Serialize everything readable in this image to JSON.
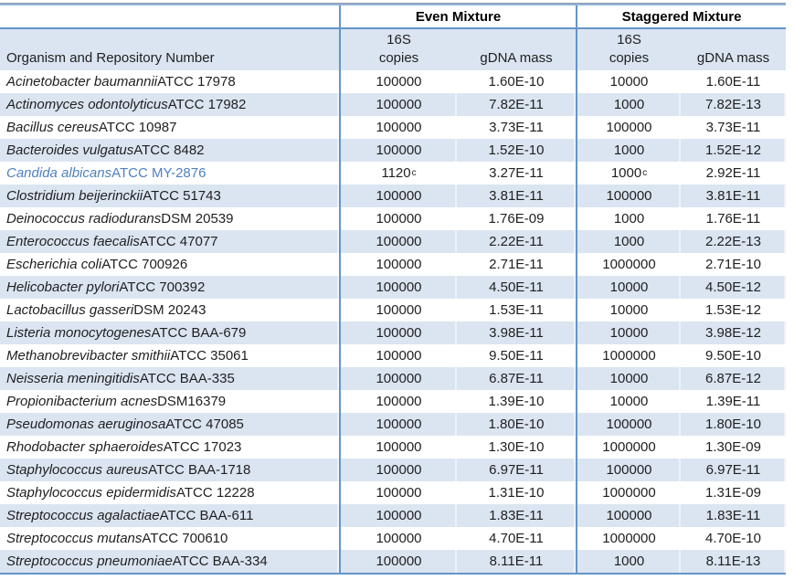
{
  "table": {
    "group_headers": [
      {
        "label": "Even Mixture"
      },
      {
        "label": "Staggered Mixture"
      }
    ],
    "columns": {
      "organism": "Organism and Repository Number",
      "copies_line1": "16S",
      "copies_line2": "copies",
      "mass": "gDNA mass"
    },
    "footnote_marker": "c",
    "colors": {
      "border_blue": "#6495c8",
      "row_shading": "#dbe5f1",
      "highlight_text": "#4f81bd"
    },
    "rows": [
      {
        "organism_italic": "Acinetobacter baumannii",
        "organism_plain": "ATCC 17978",
        "even_copies": "100000",
        "even_gdna": "1.60E-10",
        "stag_copies": "10000",
        "stag_gdna": "1.60E-11",
        "copies_sup": false,
        "highlight": false
      },
      {
        "organism_italic": "Actinomyces odontolyticus",
        "organism_plain": "ATCC 17982",
        "even_copies": "100000",
        "even_gdna": "7.82E-11",
        "stag_copies": "1000",
        "stag_gdna": "7.82E-13",
        "copies_sup": false,
        "highlight": false
      },
      {
        "organism_italic": "Bacillus cereus",
        "organism_plain": "ATCC 10987",
        "even_copies": "100000",
        "even_gdna": "3.73E-11",
        "stag_copies": "100000",
        "stag_gdna": "3.73E-11",
        "copies_sup": false,
        "highlight": false
      },
      {
        "organism_italic": "Bacteroides vulgatus",
        "organism_plain": "ATCC 8482",
        "even_copies": "100000",
        "even_gdna": "1.52E-10",
        "stag_copies": "1000",
        "stag_gdna": "1.52E-12",
        "copies_sup": false,
        "highlight": false
      },
      {
        "organism_italic": "Candida albicans",
        "organism_plain": "ATCC MY-2876",
        "even_copies": "1120",
        "even_gdna": "3.27E-11",
        "stag_copies": "1000",
        "stag_gdna": "2.92E-11",
        "copies_sup": true,
        "highlight": true
      },
      {
        "organism_italic": "Clostridium beijerinckii",
        "organism_plain": "ATCC 51743",
        "even_copies": "100000",
        "even_gdna": "3.81E-11",
        "stag_copies": "100000",
        "stag_gdna": "3.81E-11",
        "copies_sup": false,
        "highlight": false
      },
      {
        "organism_italic": "Deinococcus radiodurans",
        "organism_plain": "DSM 20539",
        "even_copies": "100000",
        "even_gdna": "1.76E-09",
        "stag_copies": "1000",
        "stag_gdna": "1.76E-11",
        "copies_sup": false,
        "highlight": false
      },
      {
        "organism_italic": "Enterococcus faecalis",
        "organism_plain": "ATCC 47077",
        "even_copies": "100000",
        "even_gdna": "2.22E-11",
        "stag_copies": "1000",
        "stag_gdna": "2.22E-13",
        "copies_sup": false,
        "highlight": false
      },
      {
        "organism_italic": "Escherichia coli",
        "organism_plain": "ATCC 700926",
        "even_copies": "100000",
        "even_gdna": "2.71E-11",
        "stag_copies": "1000000",
        "stag_gdna": "2.71E-10",
        "copies_sup": false,
        "highlight": false
      },
      {
        "organism_italic": "Helicobacter pylori",
        "organism_plain": "ATCC 700392",
        "even_copies": "100000",
        "even_gdna": "4.50E-11",
        "stag_copies": "10000",
        "stag_gdna": "4.50E-12",
        "copies_sup": false,
        "highlight": false
      },
      {
        "organism_italic": "Lactobacillus gasseri",
        "organism_plain": "DSM 20243",
        "even_copies": "100000",
        "even_gdna": "1.53E-11",
        "stag_copies": "10000",
        "stag_gdna": "1.53E-12",
        "copies_sup": false,
        "highlight": false
      },
      {
        "organism_italic": "Listeria monocytogenes",
        "organism_plain": "ATCC BAA-679",
        "even_copies": "100000",
        "even_gdna": "3.98E-11",
        "stag_copies": "10000",
        "stag_gdna": "3.98E-12",
        "copies_sup": false,
        "highlight": false
      },
      {
        "organism_italic": "Methanobrevibacter smithii",
        "organism_plain": "ATCC 35061",
        "even_copies": "100000",
        "even_gdna": "9.50E-11",
        "stag_copies": "1000000",
        "stag_gdna": "9.50E-10",
        "copies_sup": false,
        "highlight": false
      },
      {
        "organism_italic": "Neisseria meningitidis",
        "organism_plain": "ATCC BAA-335",
        "even_copies": "100000",
        "even_gdna": "6.87E-11",
        "stag_copies": "10000",
        "stag_gdna": "6.87E-12",
        "copies_sup": false,
        "highlight": false
      },
      {
        "organism_italic": "Propionibacterium acnes",
        "organism_plain": "DSM16379",
        "even_copies": "100000",
        "even_gdna": "1.39E-10",
        "stag_copies": "10000",
        "stag_gdna": "1.39E-11",
        "copies_sup": false,
        "highlight": false
      },
      {
        "organism_italic": "Pseudomonas aeruginosa",
        "organism_plain": "ATCC 47085",
        "even_copies": "100000",
        "even_gdna": "1.80E-10",
        "stag_copies": "100000",
        "stag_gdna": "1.80E-10",
        "copies_sup": false,
        "highlight": false
      },
      {
        "organism_italic": "Rhodobacter sphaeroides",
        "organism_plain": "ATCC 17023",
        "even_copies": "100000",
        "even_gdna": "1.30E-10",
        "stag_copies": "1000000",
        "stag_gdna": "1.30E-09",
        "copies_sup": false,
        "highlight": false
      },
      {
        "organism_italic": "Staphylococcus aureus",
        "organism_plain": "ATCC BAA-1718",
        "even_copies": "100000",
        "even_gdna": "6.97E-11",
        "stag_copies": "100000",
        "stag_gdna": "6.97E-11",
        "copies_sup": false,
        "highlight": false
      },
      {
        "organism_italic": "Staphylococcus epidermidis",
        "organism_plain": "ATCC 12228",
        "even_copies": "100000",
        "even_gdna": "1.31E-10",
        "stag_copies": "1000000",
        "stag_gdna": "1.31E-09",
        "copies_sup": false,
        "highlight": false
      },
      {
        "organism_italic": "Streptococcus agalactiae",
        "organism_plain": "ATCC BAA-611",
        "even_copies": "100000",
        "even_gdna": "1.83E-11",
        "stag_copies": "100000",
        "stag_gdna": "1.83E-11",
        "copies_sup": false,
        "highlight": false
      },
      {
        "organism_italic": "Streptococcus mutans",
        "organism_plain": "ATCC 700610",
        "even_copies": "100000",
        "even_gdna": "4.70E-11",
        "stag_copies": "1000000",
        "stag_gdna": "4.70E-10",
        "copies_sup": false,
        "highlight": false
      },
      {
        "organism_italic": "Streptococcus pneumoniae",
        "organism_plain": "ATCC BAA-334",
        "even_copies": "100000",
        "even_gdna": "8.11E-11",
        "stag_copies": "1000",
        "stag_gdna": "8.11E-13",
        "copies_sup": false,
        "highlight": false
      }
    ]
  }
}
